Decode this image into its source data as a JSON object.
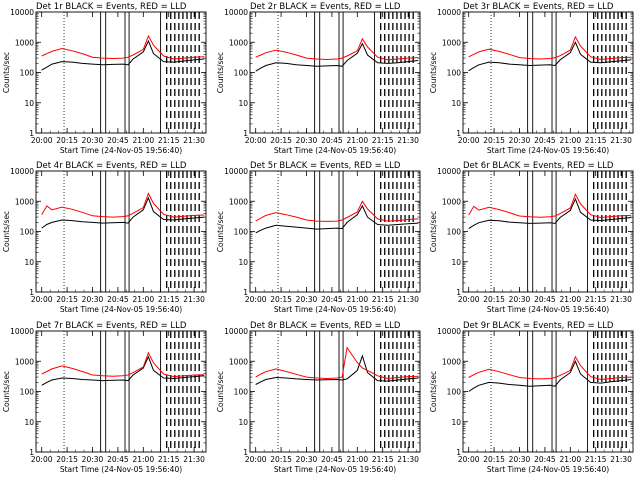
{
  "figure": {
    "background": "#ffffff"
  },
  "colors": {
    "events": "#000000",
    "lld": "#ff0000",
    "axis": "#000000"
  },
  "shared": {
    "xlabel": "Start Time (24-Nov-05 19:56:40)",
    "ylabel": "Counts/sec",
    "xticks": [
      {
        "t": 20.0,
        "label": "20:00"
      },
      {
        "t": 20.25,
        "label": "20:15"
      },
      {
        "t": 20.5,
        "label": "20:30"
      },
      {
        "t": 20.75,
        "label": "20:45"
      },
      {
        "t": 21.0,
        "label": "21:00"
      },
      {
        "t": 21.25,
        "label": "21:15"
      },
      {
        "t": 21.5,
        "label": "21:30"
      }
    ],
    "yticks": [
      {
        "v": 1,
        "label": "1"
      },
      {
        "v": 10,
        "label": "10"
      },
      {
        "v": 100,
        "label": "100"
      },
      {
        "v": 1000,
        "label": "1000"
      },
      {
        "v": 10000,
        "label": "10000"
      }
    ],
    "xlim": [
      19.944,
      21.617
    ],
    "ylim": [
      1,
      10000
    ],
    "yscale": "log",
    "markers": {
      "dotted": [
        20.22
      ],
      "solid": [
        20.58,
        20.63,
        20.82,
        20.86,
        21.17
      ],
      "dashed": [
        21.23,
        21.27,
        21.31,
        21.35,
        21.39,
        21.43,
        21.47,
        21.51,
        21.55
      ]
    }
  },
  "chart_data": [
    {
      "type": "line",
      "title": "Det 1r BLACK = Events, RED = LLD",
      "xlabel": "Start Time (24-Nov-05 19:56:40)",
      "ylabel": "Counts/sec",
      "ylim": [
        1,
        10000
      ],
      "yscale": "log",
      "grid": false,
      "legend": "title",
      "x": [
        20.0,
        20.05,
        20.1,
        20.2,
        20.3,
        20.4,
        20.5,
        20.6,
        20.7,
        20.8,
        20.85,
        20.9,
        21.0,
        21.05,
        21.1,
        21.2,
        21.3,
        21.4,
        21.5,
        21.6
      ],
      "series": [
        {
          "name": "Events",
          "color": "#000000",
          "values": [
            120,
            150,
            190,
            230,
            220,
            200,
            190,
            180,
            185,
            190,
            180,
            280,
            480,
            1100,
            420,
            230,
            220,
            240,
            260,
            280
          ]
        },
        {
          "name": "LLD",
          "color": "#ff0000",
          "values": [
            350,
            420,
            500,
            620,
            520,
            420,
            320,
            300,
            290,
            300,
            320,
            380,
            580,
            1600,
            800,
            350,
            280,
            300,
            320,
            330
          ]
        }
      ]
    },
    {
      "type": "line",
      "title": "Det 2r BLACK = Events, RED = LLD",
      "xlabel": "Start Time (24-Nov-05 19:56:40)",
      "ylabel": "Counts/sec",
      "ylim": [
        1,
        10000
      ],
      "yscale": "log",
      "grid": false,
      "legend": "title",
      "x": [
        20.0,
        20.05,
        20.1,
        20.2,
        20.3,
        20.4,
        20.5,
        20.6,
        20.7,
        20.8,
        20.85,
        20.9,
        21.0,
        21.05,
        21.1,
        21.2,
        21.3,
        21.4,
        21.5,
        21.6
      ],
      "series": [
        {
          "name": "Events",
          "color": "#000000",
          "values": [
            110,
            140,
            170,
            210,
            200,
            180,
            170,
            160,
            165,
            170,
            160,
            250,
            430,
            900,
            380,
            210,
            200,
            210,
            230,
            250
          ]
        },
        {
          "name": "LLD",
          "color": "#ff0000",
          "values": [
            320,
            380,
            450,
            550,
            470,
            380,
            300,
            280,
            270,
            280,
            300,
            350,
            520,
            1300,
            700,
            320,
            260,
            280,
            300,
            310
          ]
        }
      ]
    },
    {
      "type": "line",
      "title": "Det 3r BLACK = Events, RED = LLD",
      "xlabel": "Start Time (24-Nov-05 19:56:40)",
      "ylabel": "Counts/sec",
      "ylim": [
        1,
        10000
      ],
      "yscale": "log",
      "grid": false,
      "legend": "title",
      "x": [
        20.0,
        20.05,
        20.1,
        20.2,
        20.3,
        20.4,
        20.5,
        20.6,
        20.7,
        20.8,
        20.85,
        20.9,
        21.0,
        21.05,
        21.1,
        21.2,
        21.3,
        21.4,
        21.5,
        21.6
      ],
      "series": [
        {
          "name": "Events",
          "color": "#000000",
          "values": [
            115,
            145,
            180,
            220,
            210,
            190,
            180,
            170,
            175,
            180,
            170,
            260,
            450,
            1000,
            400,
            220,
            210,
            225,
            245,
            265
          ]
        },
        {
          "name": "LLD",
          "color": "#ff0000",
          "values": [
            330,
            400,
            480,
            590,
            500,
            400,
            310,
            290,
            280,
            290,
            310,
            360,
            550,
            1500,
            750,
            330,
            270,
            290,
            310,
            320
          ]
        }
      ]
    },
    {
      "type": "line",
      "title": "Det 4r BLACK = Events, RED = LLD",
      "xlabel": "Start Time (24-Nov-05 19:56:40)",
      "ylabel": "Counts/sec",
      "ylim": [
        1,
        10000
      ],
      "yscale": "log",
      "grid": false,
      "legend": "title",
      "x": [
        20.0,
        20.05,
        20.1,
        20.2,
        20.3,
        20.4,
        20.5,
        20.6,
        20.7,
        20.8,
        20.85,
        20.9,
        21.0,
        21.05,
        21.1,
        21.2,
        21.3,
        21.4,
        21.5,
        21.6
      ],
      "series": [
        {
          "name": "Events",
          "color": "#000000",
          "values": [
            130,
            170,
            200,
            240,
            230,
            210,
            200,
            190,
            195,
            200,
            190,
            300,
            520,
            1300,
            450,
            250,
            240,
            260,
            280,
            300
          ]
        },
        {
          "name": "LLD",
          "color": "#ff0000",
          "values": [
            360,
            700,
            520,
            640,
            540,
            430,
            330,
            310,
            300,
            310,
            330,
            400,
            620,
            1800,
            850,
            370,
            300,
            320,
            340,
            350
          ]
        }
      ]
    },
    {
      "type": "line",
      "title": "Det 5r BLACK = Events, RED = LLD",
      "xlabel": "Start Time (24-Nov-05 19:56:40)",
      "ylabel": "Counts/sec",
      "ylim": [
        1,
        10000
      ],
      "yscale": "log",
      "grid": false,
      "legend": "title",
      "x": [
        20.0,
        20.05,
        20.1,
        20.2,
        20.3,
        20.4,
        20.5,
        20.6,
        20.7,
        20.8,
        20.85,
        20.9,
        21.0,
        21.05,
        21.1,
        21.2,
        21.3,
        21.4,
        21.5,
        21.6
      ],
      "series": [
        {
          "name": "Events",
          "color": "#000000",
          "values": [
            90,
            110,
            130,
            160,
            150,
            140,
            130,
            120,
            125,
            130,
            125,
            200,
            360,
            700,
            300,
            170,
            160,
            170,
            180,
            190
          ]
        },
        {
          "name": "LLD",
          "color": "#ff0000",
          "values": [
            220,
            280,
            340,
            420,
            360,
            300,
            240,
            220,
            215,
            220,
            240,
            290,
            440,
            1000,
            560,
            260,
            220,
            230,
            250,
            260
          ]
        }
      ]
    },
    {
      "type": "line",
      "title": "Det 6r BLACK = Events, RED = LLD",
      "xlabel": "Start Time (24-Nov-05 19:56:40)",
      "ylabel": "Counts/sec",
      "ylim": [
        1,
        10000
      ],
      "yscale": "log",
      "grid": false,
      "legend": "title",
      "x": [
        20.0,
        20.05,
        20.1,
        20.2,
        20.3,
        20.4,
        20.5,
        20.6,
        20.7,
        20.8,
        20.85,
        20.9,
        21.0,
        21.05,
        21.1,
        21.2,
        21.3,
        21.4,
        21.5,
        21.6
      ],
      "series": [
        {
          "name": "Events",
          "color": "#000000",
          "values": [
            125,
            160,
            195,
            235,
            225,
            205,
            195,
            185,
            190,
            195,
            185,
            290,
            500,
            1200,
            430,
            240,
            230,
            250,
            270,
            290
          ]
        },
        {
          "name": "LLD",
          "color": "#ff0000",
          "values": [
            350,
            680,
            510,
            630,
            530,
            420,
            325,
            305,
            295,
            305,
            325,
            390,
            600,
            1700,
            820,
            360,
            290,
            310,
            330,
            340
          ]
        }
      ]
    },
    {
      "type": "line",
      "title": "Det 7r BLACK = Events, RED = LLD",
      "xlabel": "Start Time (24-Nov-05 19:56:40)",
      "ylabel": "Counts/sec",
      "ylim": [
        1,
        10000
      ],
      "yscale": "log",
      "grid": false,
      "legend": "title",
      "x": [
        20.0,
        20.05,
        20.1,
        20.2,
        20.3,
        20.4,
        20.5,
        20.6,
        20.7,
        20.8,
        20.85,
        20.9,
        21.0,
        21.05,
        21.1,
        21.2,
        21.3,
        21.4,
        21.5,
        21.6
      ],
      "series": [
        {
          "name": "Events",
          "color": "#000000",
          "values": [
            160,
            200,
            240,
            280,
            270,
            250,
            240,
            230,
            235,
            240,
            230,
            350,
            600,
            1400,
            500,
            280,
            270,
            290,
            310,
            330
          ]
        },
        {
          "name": "LLD",
          "color": "#ff0000",
          "values": [
            380,
            460,
            560,
            700,
            580,
            460,
            350,
            330,
            320,
            330,
            350,
            420,
            650,
            1900,
            880,
            380,
            310,
            330,
            350,
            360
          ]
        }
      ]
    },
    {
      "type": "line",
      "title": "Det 8r BLACK = Events, RED = LLD",
      "xlabel": "Start Time (24-Nov-05 19:56:40)",
      "ylabel": "Counts/sec",
      "ylim": [
        1,
        10000
      ],
      "yscale": "log",
      "grid": false,
      "legend": "title",
      "x": [
        20.0,
        20.05,
        20.1,
        20.2,
        20.3,
        20.4,
        20.5,
        20.6,
        20.7,
        20.8,
        20.85,
        20.9,
        21.0,
        21.05,
        21.1,
        21.2,
        21.3,
        21.4,
        21.5,
        21.6
      ],
      "series": [
        {
          "name": "Events",
          "color": "#000000",
          "values": [
            170,
            210,
            250,
            290,
            280,
            260,
            250,
            240,
            245,
            250,
            240,
            260,
            500,
            1500,
            420,
            230,
            220,
            240,
            260,
            280
          ]
        },
        {
          "name": "LLD",
          "color": "#ff0000",
          "values": [
            300,
            380,
            450,
            560,
            460,
            370,
            300,
            280,
            270,
            280,
            300,
            2800,
            900,
            600,
            500,
            330,
            270,
            290,
            310,
            320
          ]
        }
      ]
    },
    {
      "type": "line",
      "title": "Det 9r BLACK = Events, RED = LLD",
      "xlabel": "Start Time (24-Nov-05 19:56:40)",
      "ylabel": "Counts/sec",
      "ylim": [
        1,
        10000
      ],
      "yscale": "log",
      "grid": false,
      "legend": "title",
      "x": [
        20.0,
        20.05,
        20.1,
        20.2,
        20.3,
        20.4,
        20.5,
        20.6,
        20.7,
        20.8,
        20.85,
        20.9,
        21.0,
        21.05,
        21.1,
        21.2,
        21.3,
        21.4,
        21.5,
        21.6
      ],
      "series": [
        {
          "name": "Events",
          "color": "#000000",
          "values": [
            100,
            130,
            160,
            200,
            190,
            170,
            160,
            150,
            155,
            160,
            150,
            240,
            420,
            1000,
            380,
            200,
            190,
            210,
            230,
            250
          ]
        },
        {
          "name": "LLD",
          "color": "#ff0000",
          "values": [
            290,
            360,
            430,
            540,
            450,
            360,
            290,
            270,
            260,
            270,
            290,
            340,
            500,
            1400,
            720,
            310,
            250,
            270,
            290,
            300
          ]
        }
      ]
    }
  ]
}
